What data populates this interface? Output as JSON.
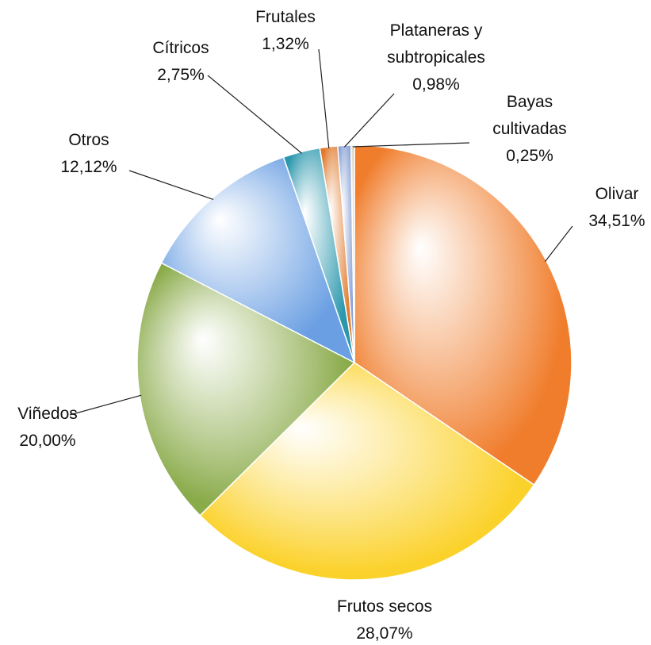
{
  "chart_data": {
    "type": "pie",
    "categories": [
      "Olivar",
      "Frutos secos",
      "Viñedos",
      "Otros",
      "Cítricos",
      "Frutales",
      "Plataneras y subtropicales",
      "Bayas cultivadas"
    ],
    "values": [
      34.51,
      28.07,
      20.0,
      12.12,
      2.75,
      1.32,
      0.98,
      0.25
    ],
    "value_labels": [
      "34,51%",
      "28,07%",
      "20,00%",
      "12,12%",
      "2,75%",
      "1,32%",
      "0,98%",
      "0,25%"
    ],
    "colors": [
      "#f07d2c",
      "#fbd22c",
      "#8aab4a",
      "#6a9fe3",
      "#2a97ad",
      "#e0792a",
      "#8aa3d6",
      "#d8cbb6"
    ]
  }
}
